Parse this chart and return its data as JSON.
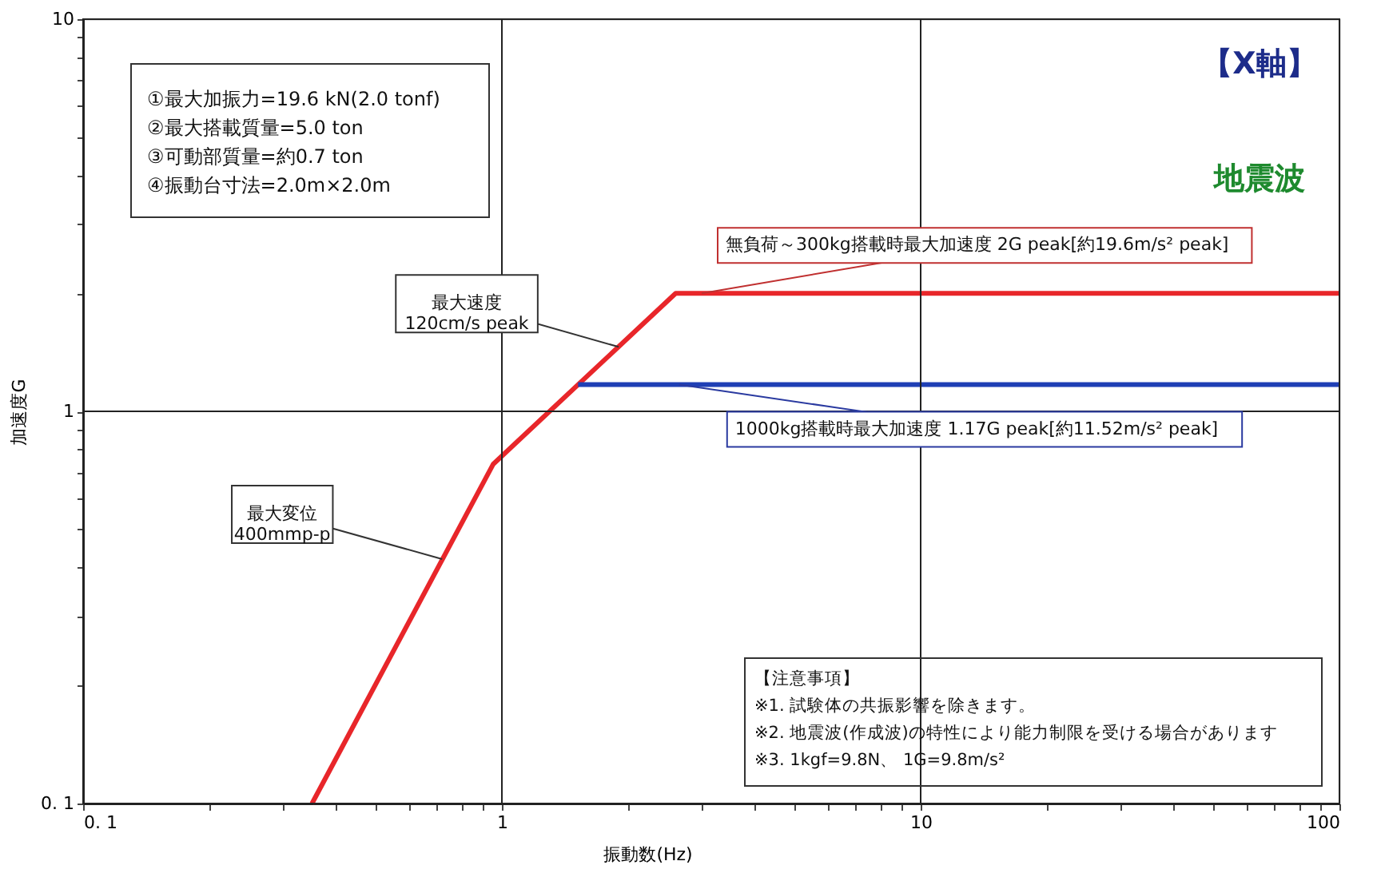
{
  "chart_data": {
    "type": "line",
    "title": "【X軸】",
    "subtitle": "地震波",
    "xlabel": "振動数(Hz)",
    "ylabel": "加速度G",
    "log": "xy",
    "grid": true,
    "marker": "none",
    "line_style": "solid",
    "xlim": [
      0.1,
      100
    ],
    "ylim": [
      0.1,
      10
    ],
    "xticks": [
      {
        "value": 0.1,
        "label": "0. 1"
      },
      {
        "value": 0.2,
        "label": null
      },
      {
        "value": 0.3,
        "label": null
      },
      {
        "value": 0.4,
        "label": null
      },
      {
        "value": 0.5,
        "label": null
      },
      {
        "value": 0.6,
        "label": null
      },
      {
        "value": 0.7,
        "label": null
      },
      {
        "value": 0.8,
        "label": null
      },
      {
        "value": 0.9,
        "label": null
      },
      1,
      {
        "value": 2,
        "label": null
      },
      {
        "value": 3,
        "label": null
      },
      {
        "value": 4,
        "label": null
      },
      {
        "value": 5,
        "label": null
      },
      {
        "value": 6,
        "label": null
      },
      {
        "value": 7,
        "label": null
      },
      {
        "value": 8,
        "label": null
      },
      {
        "value": 9,
        "label": null
      },
      10,
      {
        "value": 20,
        "label": null
      },
      {
        "value": 30,
        "label": null
      },
      {
        "value": 40,
        "label": null
      },
      {
        "value": 50,
        "label": null
      },
      {
        "value": 60,
        "label": null
      },
      {
        "value": 70,
        "label": null
      },
      {
        "value": 80,
        "label": null
      },
      {
        "value": 90,
        "label": null
      },
      100
    ],
    "yticks": [
      {
        "value": 0.1,
        "label": "0. 1"
      },
      {
        "value": 0.2,
        "label": null
      },
      {
        "value": 0.3,
        "label": null
      },
      {
        "value": 0.4,
        "label": null
      },
      {
        "value": 0.5,
        "label": null
      },
      {
        "value": 0.6,
        "label": null
      },
      {
        "value": 0.7,
        "label": null
      },
      {
        "value": 0.8,
        "label": null
      },
      {
        "value": 0.9,
        "label": null
      },
      1,
      {
        "value": 2,
        "label": null
      },
      {
        "value": 3,
        "label": null
      },
      {
        "value": 4,
        "label": null
      },
      {
        "value": 5,
        "label": null
      },
      {
        "value": 6,
        "label": null
      },
      {
        "value": 7,
        "label": null
      },
      {
        "value": 8,
        "label": null
      },
      {
        "value": 9,
        "label": null
      },
      10
    ],
    "series": [
      {
        "color": "#e8262a",
        "x": [
          0.352,
          0.954,
          2.6,
          100
        ],
        "values": [
          0.1,
          0.734,
          2,
          2
        ]
      },
      {
        "color": "#1f3fb5",
        "x": [
          1.52,
          100
        ],
        "values": [
          1.17,
          1.17
        ]
      }
    ],
    "annotations": [
      "①最大加振力=19.6 kN(2.0 tonf)",
      "②最大搭載質量=5.0 ton",
      "③可動部質量=約0.7 ton",
      "④振動台寸法=2.0m×2.0m",
      "【注意事項】",
      "※1. 試験体の共振影響を除きます。",
      "※2. 地震波(作成波)の特性により能力制限を受ける場合があります",
      "※3. 1kgf=9.8N、 1G=9.8m/s²",
      {
        "text": "最大速度\n120cm/s peak",
        "x": 1.9,
        "y": 1.46
      },
      {
        "text": "最大変位\n400mmp-p",
        "x": 0.72,
        "y": 0.42
      },
      {
        "text": "無負荷～300kg搭載時最大加速度 2G peak[約19.6m/s² peak]",
        "x": 3.0,
        "y": 2
      },
      {
        "text": "1000kg搭載時最大加速度 1.17G peak[約11.52m/s² peak]",
        "x": 2.65,
        "y": 1.17
      }
    ]
  }
}
